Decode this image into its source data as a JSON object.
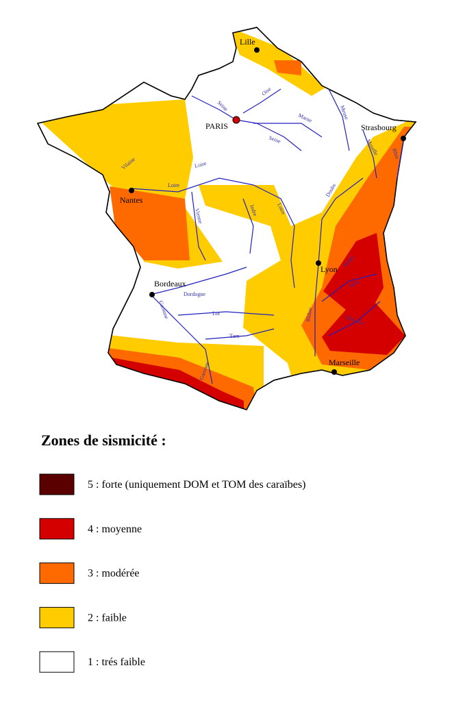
{
  "map": {
    "cities": [
      "Lille",
      "PARIS",
      "Strasbourg",
      "Nantes",
      "Lyon",
      "Bordeaux",
      "Marseille"
    ],
    "rivers": [
      "Seine",
      "Oise",
      "Marne",
      "Meuse",
      "Seine",
      "Moselle",
      "Rhin",
      "Loire",
      "Loire",
      "Vilaine",
      "Vienne",
      "Indre",
      "Loire",
      "Doubs",
      "Saône",
      "Rhône",
      "Isère",
      "Durance",
      "Dordogne",
      "Garonne",
      "Lot",
      "Tarn",
      "Garonne"
    ]
  },
  "legend": {
    "title": "Zones de sismicité :",
    "items": [
      {
        "label": "5 : forte (uniquement DOM et TOM des caraïbes)",
        "color": "#5a0000"
      },
      {
        "label": "4 : moyenne",
        "color": "#d40000"
      },
      {
        "label": "3 : modérée",
        "color": "#ff6a00"
      },
      {
        "label": "2 : faible",
        "color": "#ffcc00"
      },
      {
        "label": "1 : trés faible",
        "color": "#ffffff"
      }
    ]
  }
}
